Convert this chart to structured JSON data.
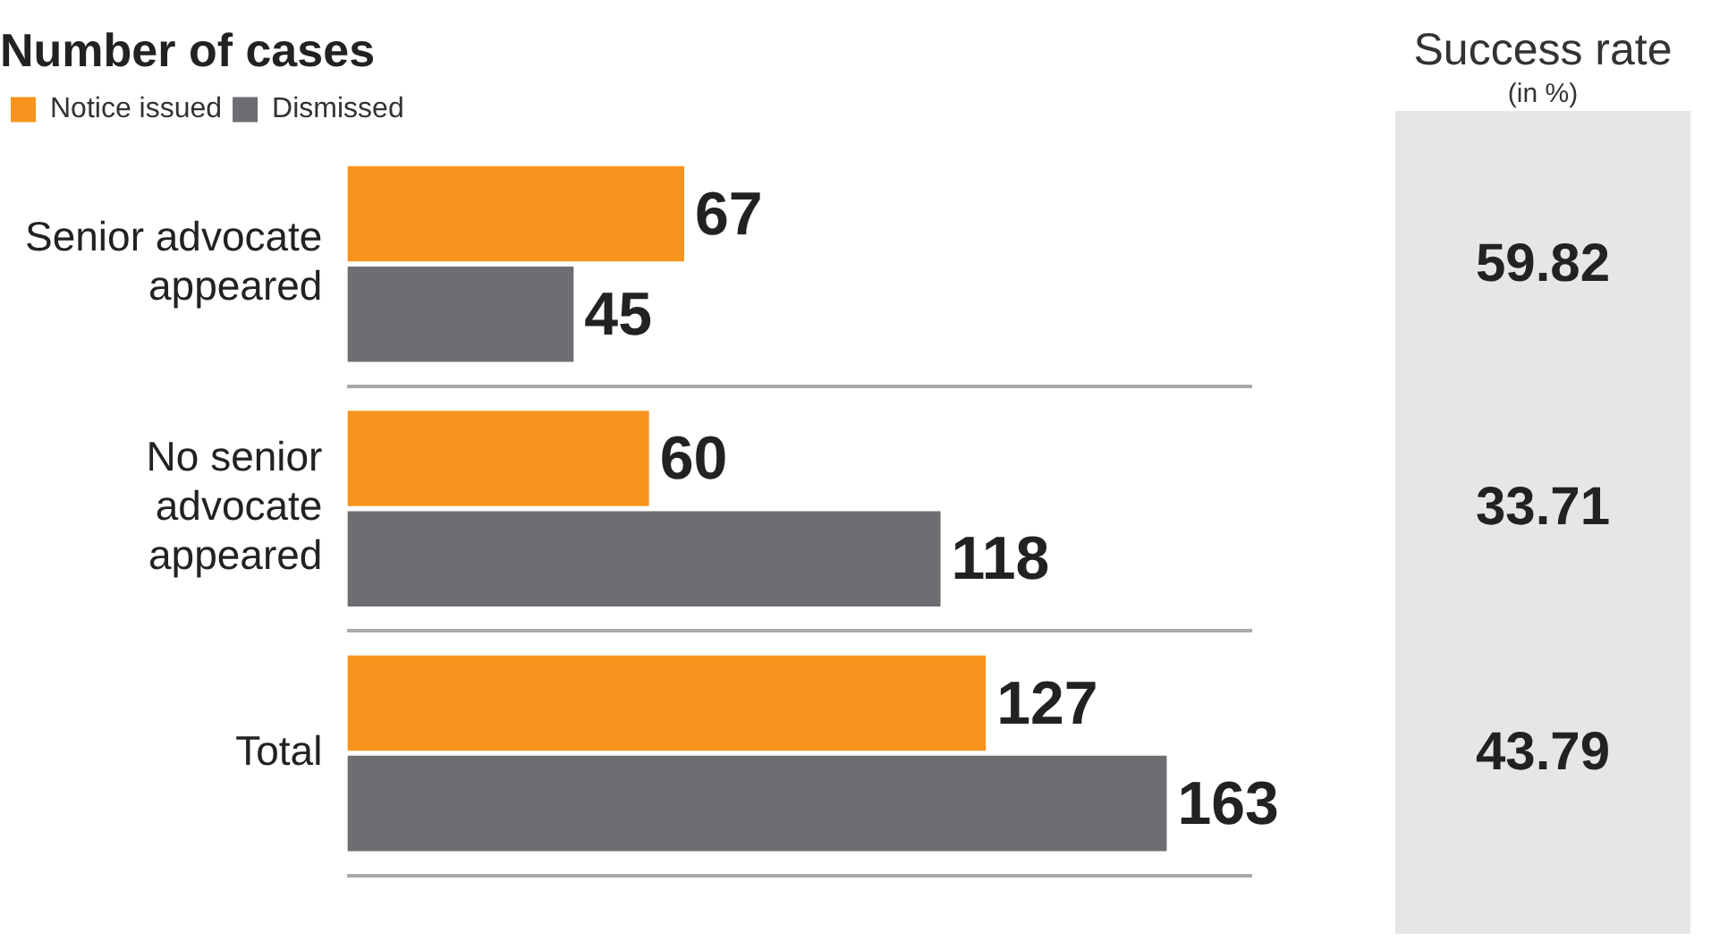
{
  "chart_data": [
    {
      "type": "bar",
      "orientation": "horizontal",
      "title": "Number of cases",
      "categories": [
        "Senior advocate appeared",
        "No senior advocate appeared",
        "Total"
      ],
      "series": [
        {
          "name": "Notice issued",
          "color": "#f7941d",
          "values": [
            67,
            60,
            127
          ]
        },
        {
          "name": "Dismissed",
          "color": "#6d6e71",
          "values": [
            45,
            118,
            163
          ]
        }
      ],
      "data_labels": true,
      "legend": "top left",
      "grid": "y",
      "tick_labels": "y"
    },
    {
      "type": "other",
      "title": "Success rate",
      "subtitle": "(in %)",
      "categories": [
        null,
        null,
        null
      ],
      "values": [
        59.82,
        33.71,
        43.79
      ],
      "data_labels": true
    }
  ]
}
